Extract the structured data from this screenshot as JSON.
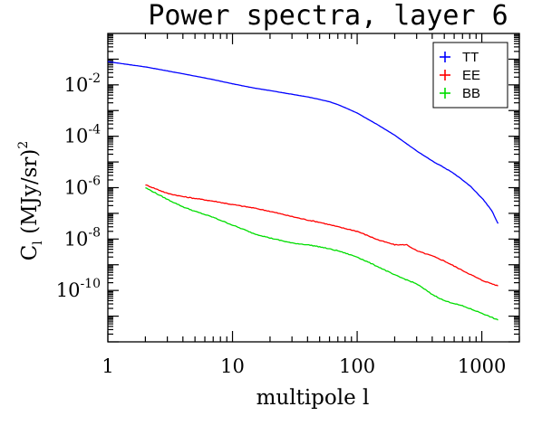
{
  "chart_data": {
    "type": "line",
    "title": "Power spectra, layer 6",
    "xlabel": "multipole l",
    "ylabel": "C_l (MJy/sr)^2",
    "ylabel_main": "C",
    "ylabel_sub": "l",
    "ylabel_rest": " (MJy/sr)",
    "ylabel_sup": "2",
    "xscale": "log",
    "yscale": "log",
    "xlim": [
      1,
      2000
    ],
    "ylim": [
      1e-12,
      1
    ],
    "grid": false,
    "legend_position": "top-right",
    "x_ticks": [
      {
        "value": 1,
        "label": "1"
      },
      {
        "value": 10,
        "label": "10"
      },
      {
        "value": 100,
        "label": "100"
      },
      {
        "value": 1000,
        "label": "1000"
      }
    ],
    "y_ticks": [
      {
        "value": 0.01,
        "base": "10",
        "exp": "-2"
      },
      {
        "value": 0.0001,
        "base": "10",
        "exp": "-4"
      },
      {
        "value": 1e-06,
        "base": "10",
        "exp": "-6"
      },
      {
        "value": 1e-08,
        "base": "10",
        "exp": "-8"
      },
      {
        "value": 1e-10,
        "base": "10",
        "exp": "-10"
      }
    ],
    "series": [
      {
        "name": "TT",
        "color": "#0000ff",
        "x": [
          1,
          2,
          3,
          5,
          7,
          10,
          15,
          20,
          30,
          40,
          50,
          60,
          70,
          80,
          100,
          150,
          200,
          300,
          400,
          500,
          600,
          700,
          800,
          1000,
          1200,
          1350
        ],
        "y": [
          0.08,
          0.05,
          0.035,
          0.022,
          0.016,
          0.011,
          0.0075,
          0.006,
          0.0043,
          0.0034,
          0.0027,
          0.0022,
          0.0017,
          0.0013,
          0.0008,
          0.00026,
          0.00011,
          2.7e-05,
          1.1e-05,
          6e-06,
          3.5e-06,
          2e-06,
          1.2e-06,
          4e-07,
          1.3e-07,
          4e-08
        ]
      },
      {
        "name": "EE",
        "color": "#ff0000",
        "x": [
          2,
          3,
          4,
          5,
          7,
          10,
          15,
          20,
          30,
          40,
          50,
          70,
          100,
          150,
          200,
          250,
          300,
          400,
          500,
          700,
          1000,
          1350
        ],
        "y": [
          1.3e-06,
          6e-07,
          4.5e-07,
          3.8e-07,
          3e-07,
          2.2e-07,
          1.6e-07,
          1.2e-07,
          7.5e-08,
          5.5e-08,
          4.5e-08,
          3e-08,
          2e-08,
          9e-09,
          6e-09,
          6e-09,
          3.5e-09,
          2.2e-09,
          1.4e-09,
          6e-10,
          2.5e-10,
          1.5e-10
        ]
      },
      {
        "name": "BB",
        "color": "#00dd00",
        "x": [
          2,
          3,
          4,
          5,
          7,
          10,
          15,
          20,
          30,
          40,
          50,
          70,
          100,
          150,
          200,
          300,
          400,
          500,
          700,
          1000,
          1350
        ],
        "y": [
          1e-06,
          3.5e-07,
          1.8e-07,
          1.2e-07,
          7e-08,
          3.5e-08,
          1.6e-08,
          1.1e-08,
          7e-09,
          6e-09,
          5e-09,
          3.5e-09,
          2e-09,
          8e-10,
          4e-10,
          1.8e-10,
          7e-11,
          4e-11,
          2.5e-11,
          1.3e-11,
          7e-12
        ]
      }
    ]
  }
}
